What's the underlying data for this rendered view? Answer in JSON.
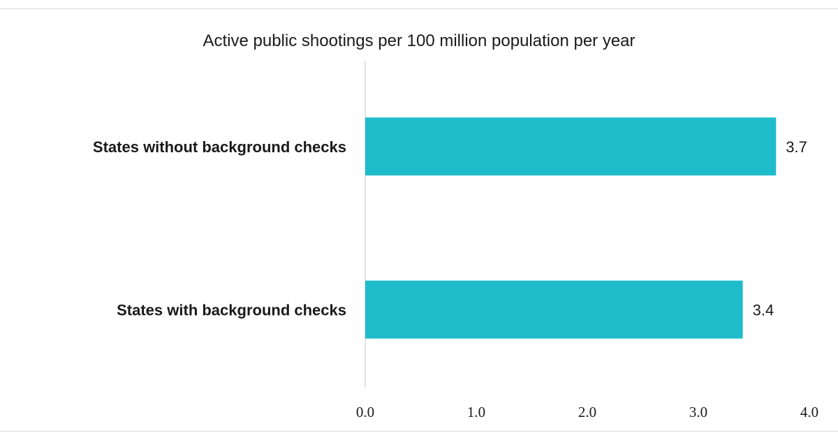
{
  "chart_data": {
    "type": "bar",
    "orientation": "horizontal",
    "title": "Active public shootings per 100 million population per year",
    "categories": [
      "States without background checks",
      "States with background checks"
    ],
    "values": [
      3.7,
      3.4
    ],
    "value_labels": [
      "3.7",
      "3.4"
    ],
    "xlim": [
      0,
      4.0
    ],
    "x_ticks": [
      "0.0",
      "1.0",
      "2.0",
      "3.0",
      "4.0"
    ],
    "xlabel": "",
    "ylabel": "",
    "grid": false,
    "legend": "none",
    "bar_color": "#1fbdc9",
    "axis_color": "#d9d9d9"
  }
}
